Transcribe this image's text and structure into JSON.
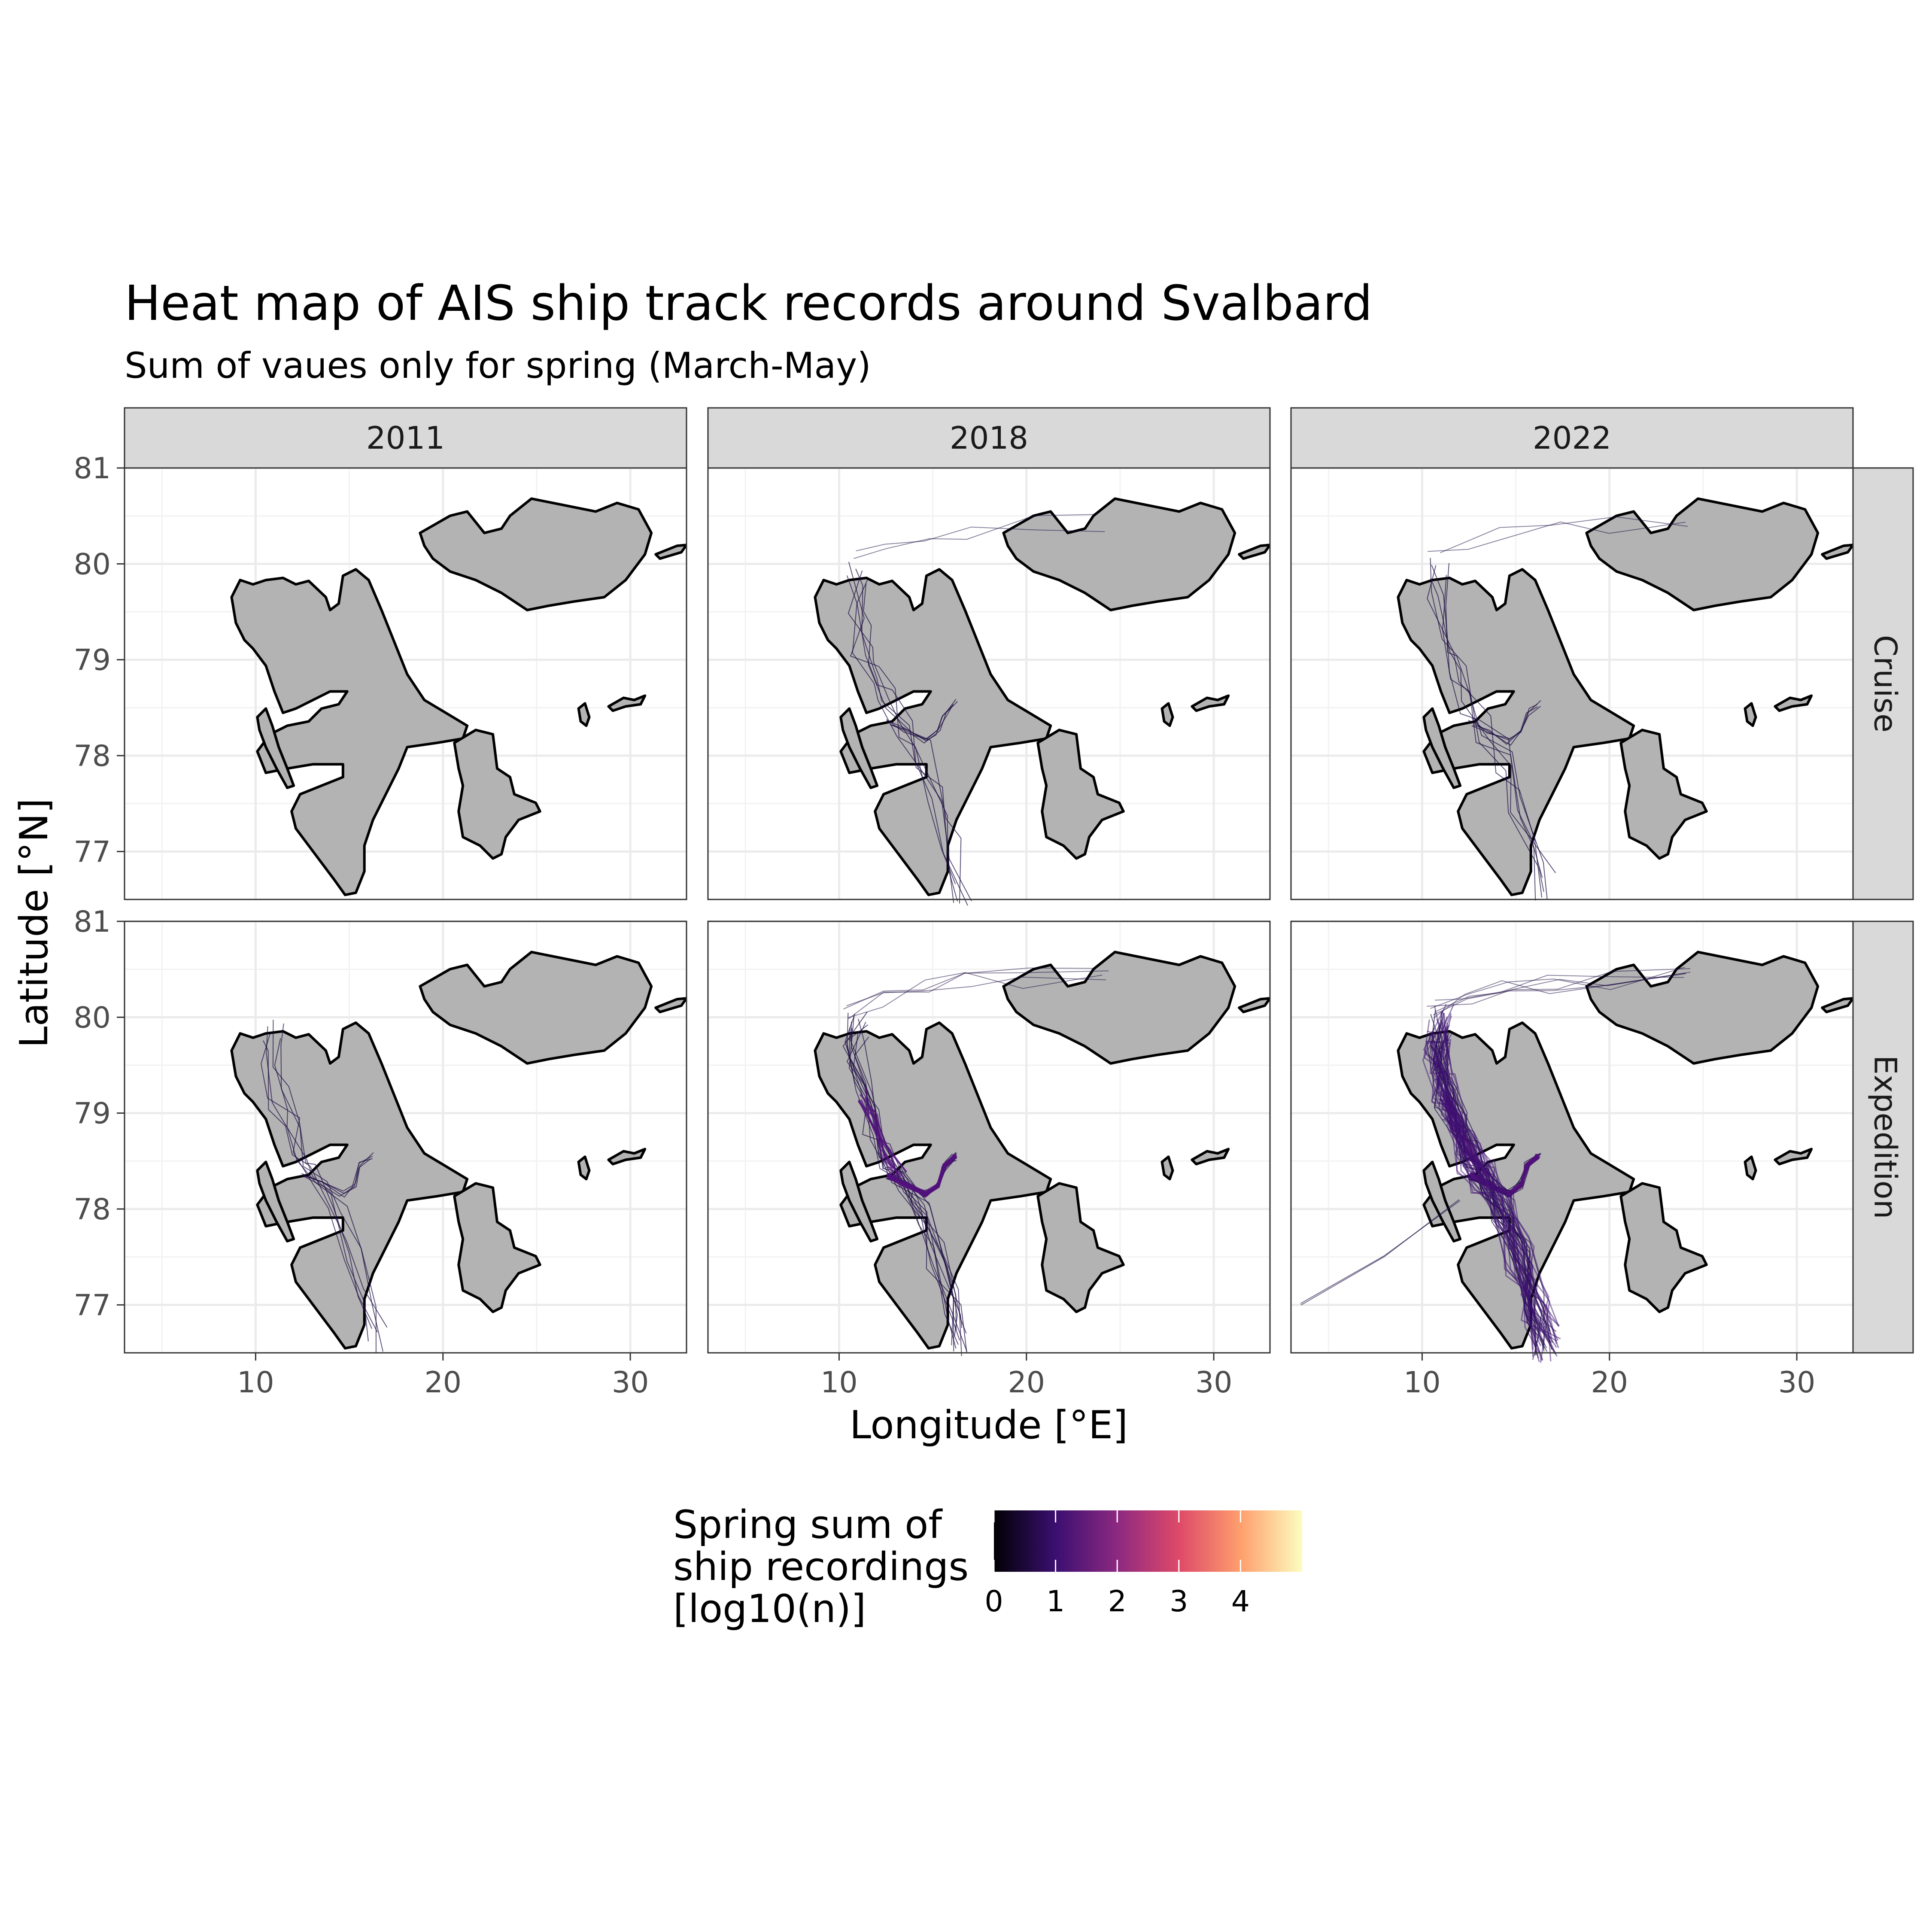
{
  "title": "Heat map of AIS ship track records around Svalbard",
  "subtitle": "Sum of vaues only for spring (March-May)",
  "x_axis_title": "Longitude [°E]",
  "y_axis_title": "Latitude [°N]",
  "legend": {
    "title_lines": [
      "Spring sum of",
      "ship recordings",
      "[log10(n)]"
    ],
    "ticks": [
      "0",
      "1",
      "2",
      "3",
      "4"
    ],
    "range": [
      0,
      5
    ],
    "palette": [
      "#000004",
      "#3b0f70",
      "#8c2981",
      "#de4968",
      "#fe9f6d",
      "#fcfdbf"
    ]
  },
  "chart_data": {
    "type": "heatmap",
    "title": "Heat map of AIS ship track records around Svalbard",
    "subtitle": "Sum of vaues only for spring (March-May)",
    "xlabel": "Longitude [°E]",
    "ylabel": "Latitude [°N]",
    "xlim": [
      3,
      33
    ],
    "ylim": [
      76.5,
      81
    ],
    "x_ticks": [
      "10",
      "20",
      "30"
    ],
    "y_ticks": [
      "77",
      "78",
      "79",
      "80",
      "81"
    ],
    "columns": [
      "2011",
      "2018",
      "2022"
    ],
    "rows": [
      "Cruise",
      "Expedition"
    ],
    "grid": true,
    "legend_position": "bottom",
    "panels": [
      {
        "year": "2011",
        "type": "Cruise",
        "activity": "none"
      },
      {
        "year": "2018",
        "type": "Cruise",
        "activity": "sparse tracks along west coast and north of Svalbard"
      },
      {
        "year": "2022",
        "type": "Cruise",
        "activity": "few tracks along west coast"
      },
      {
        "year": "2011",
        "type": "Expedition",
        "activity": "few tracks in Isfjorden"
      },
      {
        "year": "2018",
        "type": "Expedition",
        "activity": "moderate, concentrated in Isfjorden and west coast"
      },
      {
        "year": "2022",
        "type": "Expedition",
        "activity": "dense, along entire west coast and Isfjorden"
      }
    ]
  }
}
